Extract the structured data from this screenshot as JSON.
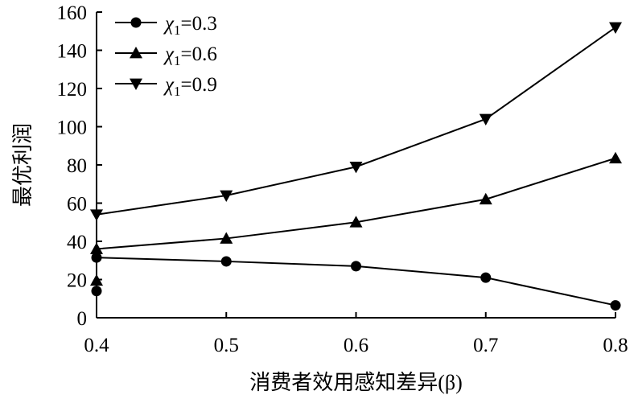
{
  "chart_data": {
    "type": "line",
    "xlabel": "消费者效用感知差异(β)",
    "ylabel": "最优利润",
    "x": [
      0.4,
      0.5,
      0.6,
      0.7,
      0.8
    ],
    "xticks": [
      "0.4",
      "0.5",
      "0.6",
      "0.7",
      "0.8"
    ],
    "xlim": [
      0.4,
      0.8
    ],
    "ylim": [
      0,
      160
    ],
    "yticks": [
      "0",
      "20",
      "40",
      "60",
      "80",
      "100",
      "120",
      "140",
      "160"
    ],
    "grid": false,
    "legend_position": "top-left",
    "series": [
      {
        "name": "χ1=0.3",
        "label_var": "χ",
        "label_sub": "1",
        "label_val": "=0.3",
        "marker": "circle",
        "values": [
          31.5,
          29.5,
          27,
          21,
          6.5
        ]
      },
      {
        "name": "χ1=0.6",
        "label_var": "χ",
        "label_sub": "1",
        "label_val": "=0.6",
        "marker": "triangle-up",
        "values": [
          36,
          41.5,
          50,
          62,
          83.5
        ]
      },
      {
        "name": "χ1=0.9",
        "label_var": "χ",
        "label_sub": "1",
        "label_val": "=0.9",
        "marker": "triangle-down",
        "values": [
          54,
          64,
          79,
          104,
          152
        ]
      }
    ],
    "extra_points": [
      {
        "x": 0.4,
        "y": 14,
        "marker": "circle"
      },
      {
        "x": 0.4,
        "y": 19.5,
        "marker": "triangle-up"
      }
    ],
    "line_color": "#000000"
  }
}
